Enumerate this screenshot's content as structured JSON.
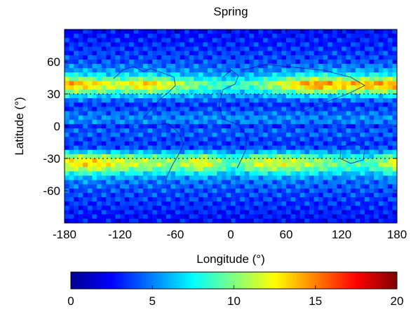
{
  "chart_data": {
    "type": "heatmap",
    "title": "Spring",
    "xlabel": "Longitude (°)",
    "ylabel": "Latitude (°)",
    "xlim": [
      -180,
      180
    ],
    "ylim": [
      -90,
      90
    ],
    "xticks": [
      -180,
      -120,
      -60,
      0,
      60,
      120,
      180
    ],
    "yticks": [
      60,
      30,
      0,
      -30,
      -60
    ],
    "grid": "dotted lines at latitude 30 and -30",
    "colorbar": {
      "placement": "bottom",
      "range": [
        0,
        20
      ],
      "ticks": [
        0,
        5,
        10,
        15,
        20
      ],
      "colormap": "jet",
      "colors": [
        "#00008f",
        "#0000ff",
        "#0080ff",
        "#00ffff",
        "#80ff80",
        "#ffff00",
        "#ff8000",
        "#ff0000",
        "#800000"
      ]
    },
    "latitude_profile": {
      "lat": [
        90,
        80,
        70,
        60,
        50,
        45,
        40,
        35,
        30,
        25,
        20,
        15,
        10,
        5,
        0,
        -5,
        -10,
        -15,
        -20,
        -25,
        -30,
        -35,
        -40,
        -45,
        -50,
        -60,
        -70,
        -80,
        -90
      ],
      "value": [
        2.5,
        3,
        3.5,
        4,
        6,
        9,
        13,
        12,
        8,
        5,
        3.5,
        4,
        5,
        5.5,
        3.5,
        4.5,
        4,
        3.5,
        4,
        7,
        11,
        12,
        10,
        7,
        5,
        4,
        3.5,
        3,
        2.5
      ]
    },
    "longitude_modulation": {
      "lon": [
        -180,
        -150,
        -120,
        -90,
        -60,
        -30,
        0,
        30,
        60,
        90,
        120,
        150,
        180
      ],
      "north_band": [
        1.15,
        1.0,
        0.85,
        1.05,
        0.8,
        0.6,
        0.5,
        0.6,
        0.9,
        1.2,
        1.05,
        1.1,
        1.15
      ],
      "south_band": [
        1.1,
        1.2,
        1.0,
        0.9,
        0.8,
        1.1,
        0.6,
        1.0,
        1.0,
        0.85,
        0.7,
        0.6,
        1.1
      ]
    }
  }
}
